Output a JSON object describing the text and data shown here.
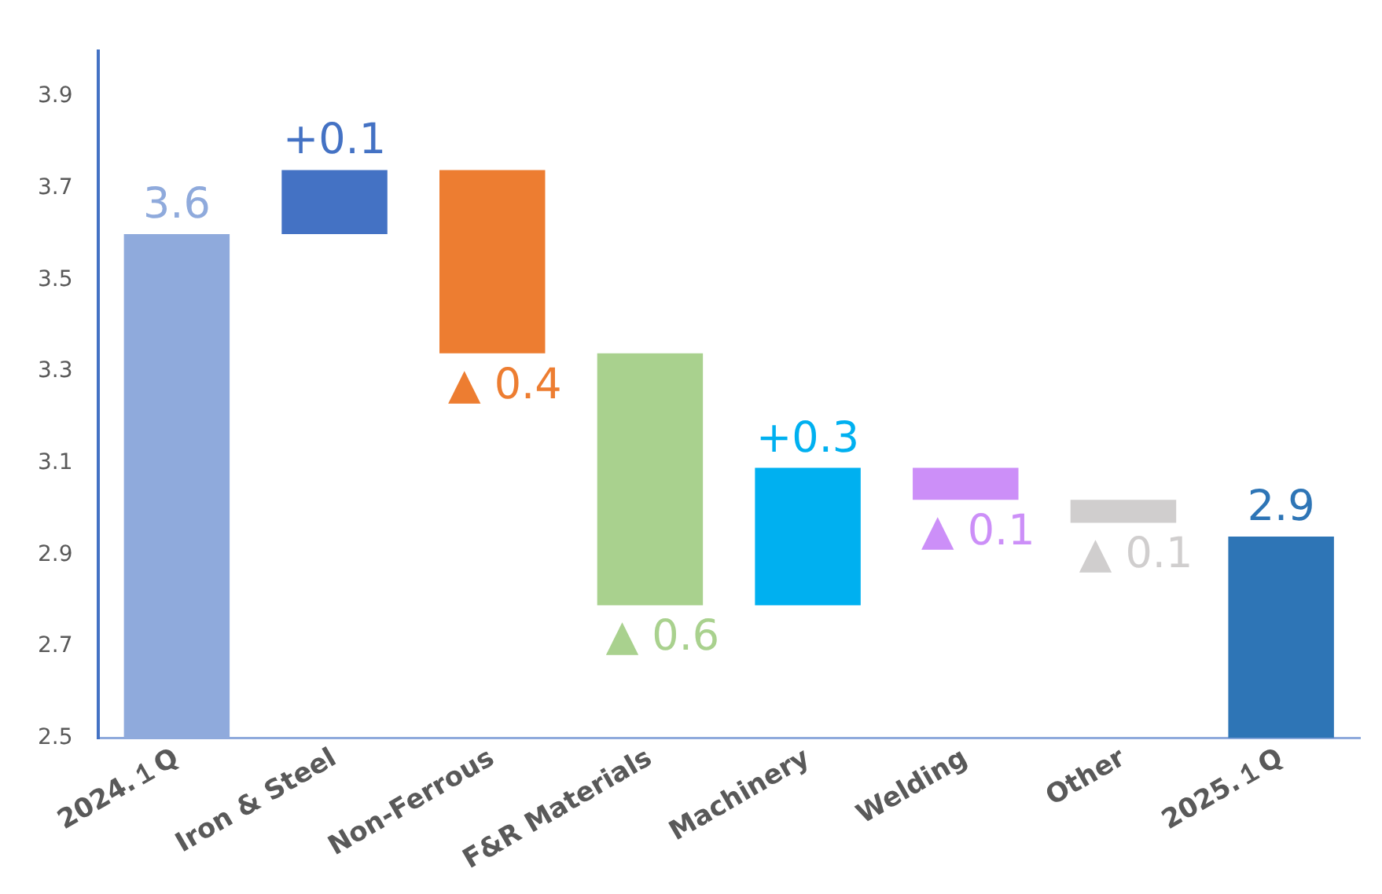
{
  "chart_data": {
    "type": "bar",
    "categories": [
      "2024.１Q",
      "Iron & Steel",
      "Non-Ferrous",
      "F&R Materials",
      "Machinery",
      "Welding",
      "Other",
      "2025.１Q"
    ],
    "values": [
      3.6,
      0.14,
      -0.4,
      -0.55,
      0.3,
      -0.07,
      -0.05,
      2.94
    ],
    "base": [
      null,
      3.6,
      3.74,
      3.34,
      2.79,
      3.09,
      3.02,
      null
    ],
    "colors": [
      "#8faadc",
      "#4472c4",
      "#ed7d31",
      "#a9d18e",
      "#00b0f0",
      "#cc8ff8",
      "#d0cece",
      "#2e75b6"
    ],
    "value_labels": [
      "3.6",
      "+0.1",
      "▲ 0.4",
      "▲ 0.6",
      "+0.3",
      "▲ 0.1",
      "▲ 0.1",
      "2.9"
    ],
    "ylim": [
      2.5,
      4.0
    ],
    "yticks": [
      2.5,
      2.7,
      2.9,
      3.1,
      3.3,
      3.5,
      3.7,
      3.9
    ],
    "grid": false,
    "legend": false
  }
}
